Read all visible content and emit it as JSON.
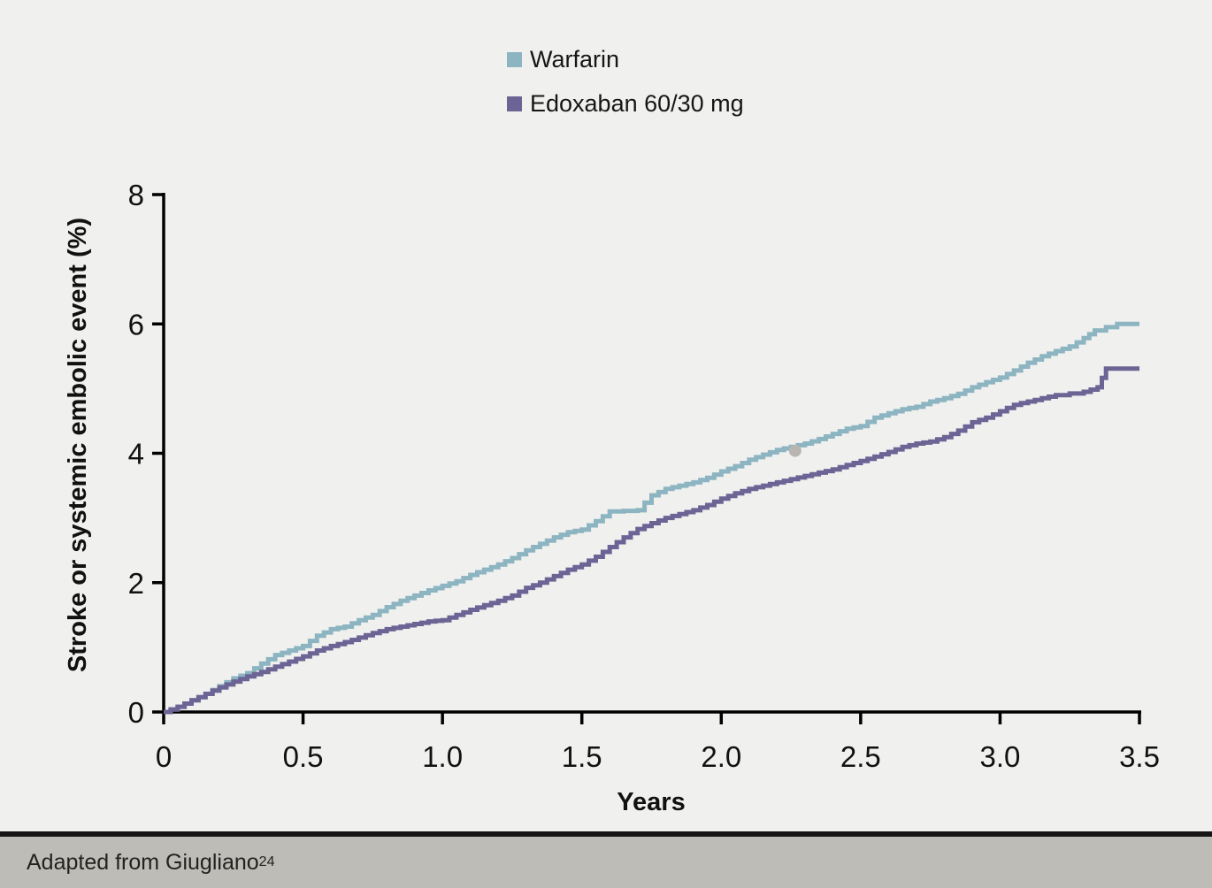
{
  "page": {
    "background_color": "#f0f0ee"
  },
  "legend": {
    "items": [
      {
        "label": "Warfarin",
        "color": "#8cb4c1"
      },
      {
        "label": "Edoxaban 60/30 mg",
        "color": "#6b6494"
      }
    ]
  },
  "footer": {
    "text": "Adapted from Giugliano",
    "citation_superscript": "24",
    "background_color": "#bebcb6",
    "border_color": "#161616"
  },
  "chart_data": {
    "type": "line",
    "line_style": "step",
    "title": "",
    "xlabel": "Years",
    "ylabel": "Stroke or systemic embolic event (%)",
    "xlim": [
      0,
      3.5
    ],
    "ylim": [
      0,
      8
    ],
    "x_ticks": [
      "0",
      "0.5",
      "1.0",
      "1.5",
      "2.0",
      "2.5",
      "3.0",
      "3.5"
    ],
    "x_tick_values": [
      0,
      0.5,
      1,
      1.5,
      2,
      2.5,
      3,
      3.5
    ],
    "y_ticks": [
      "0",
      "2",
      "4",
      "6",
      "8"
    ],
    "y_tick_values": [
      0,
      2,
      4,
      6,
      8
    ],
    "grid": false,
    "legend_position": "top-center",
    "axis_color": "#000000",
    "series": [
      {
        "name": "Warfarin",
        "color": "#8cb4c1",
        "points": [
          [
            0,
            0
          ],
          [
            0.05,
            0.08
          ],
          [
            0.1,
            0.18
          ],
          [
            0.15,
            0.28
          ],
          [
            0.2,
            0.4
          ],
          [
            0.25,
            0.52
          ],
          [
            0.3,
            0.6
          ],
          [
            0.35,
            0.75
          ],
          [
            0.4,
            0.88
          ],
          [
            0.45,
            0.95
          ],
          [
            0.5,
            1.02
          ],
          [
            0.55,
            1.18
          ],
          [
            0.6,
            1.28
          ],
          [
            0.65,
            1.32
          ],
          [
            0.7,
            1.42
          ],
          [
            0.75,
            1.5
          ],
          [
            0.8,
            1.62
          ],
          [
            0.85,
            1.72
          ],
          [
            0.9,
            1.8
          ],
          [
            0.95,
            1.88
          ],
          [
            1,
            1.95
          ],
          [
            1.05,
            2.02
          ],
          [
            1.1,
            2.12
          ],
          [
            1.15,
            2.2
          ],
          [
            1.2,
            2.28
          ],
          [
            1.25,
            2.38
          ],
          [
            1.3,
            2.5
          ],
          [
            1.35,
            2.6
          ],
          [
            1.4,
            2.7
          ],
          [
            1.45,
            2.78
          ],
          [
            1.5,
            2.82
          ],
          [
            1.55,
            2.95
          ],
          [
            1.6,
            3.1
          ],
          [
            1.7,
            3.12
          ],
          [
            1.75,
            3.35
          ],
          [
            1.8,
            3.45
          ],
          [
            1.85,
            3.5
          ],
          [
            1.9,
            3.55
          ],
          [
            1.95,
            3.62
          ],
          [
            2,
            3.72
          ],
          [
            2.05,
            3.8
          ],
          [
            2.1,
            3.9
          ],
          [
            2.15,
            3.98
          ],
          [
            2.2,
            4.05
          ],
          [
            2.25,
            4.1
          ],
          [
            2.3,
            4.15
          ],
          [
            2.35,
            4.22
          ],
          [
            2.4,
            4.3
          ],
          [
            2.45,
            4.38
          ],
          [
            2.5,
            4.42
          ],
          [
            2.55,
            4.55
          ],
          [
            2.6,
            4.62
          ],
          [
            2.65,
            4.68
          ],
          [
            2.7,
            4.72
          ],
          [
            2.75,
            4.8
          ],
          [
            2.8,
            4.85
          ],
          [
            2.85,
            4.92
          ],
          [
            2.9,
            5.02
          ],
          [
            2.95,
            5.1
          ],
          [
            3,
            5.17
          ],
          [
            3.05,
            5.28
          ],
          [
            3.1,
            5.4
          ],
          [
            3.15,
            5.5
          ],
          [
            3.2,
            5.58
          ],
          [
            3.25,
            5.65
          ],
          [
            3.3,
            5.78
          ],
          [
            3.34,
            5.9
          ],
          [
            3.42,
            6
          ],
          [
            3.5,
            6
          ]
        ]
      },
      {
        "name": "Edoxaban 60/30 mg",
        "color": "#6b6494",
        "points": [
          [
            0,
            0
          ],
          [
            0.05,
            0.08
          ],
          [
            0.1,
            0.18
          ],
          [
            0.15,
            0.28
          ],
          [
            0.2,
            0.38
          ],
          [
            0.25,
            0.47
          ],
          [
            0.3,
            0.55
          ],
          [
            0.35,
            0.62
          ],
          [
            0.4,
            0.7
          ],
          [
            0.45,
            0.78
          ],
          [
            0.5,
            0.86
          ],
          [
            0.55,
            0.95
          ],
          [
            0.6,
            1.02
          ],
          [
            0.65,
            1.08
          ],
          [
            0.7,
            1.15
          ],
          [
            0.75,
            1.22
          ],
          [
            0.8,
            1.28
          ],
          [
            0.85,
            1.32
          ],
          [
            0.9,
            1.36
          ],
          [
            0.95,
            1.4
          ],
          [
            1,
            1.42
          ],
          [
            1.05,
            1.5
          ],
          [
            1.1,
            1.58
          ],
          [
            1.15,
            1.65
          ],
          [
            1.2,
            1.72
          ],
          [
            1.25,
            1.8
          ],
          [
            1.3,
            1.92
          ],
          [
            1.35,
            2
          ],
          [
            1.4,
            2.1
          ],
          [
            1.45,
            2.2
          ],
          [
            1.5,
            2.28
          ],
          [
            1.55,
            2.4
          ],
          [
            1.6,
            2.55
          ],
          [
            1.65,
            2.7
          ],
          [
            1.7,
            2.83
          ],
          [
            1.75,
            2.92
          ],
          [
            1.8,
            3
          ],
          [
            1.85,
            3.06
          ],
          [
            1.9,
            3.12
          ],
          [
            1.95,
            3.2
          ],
          [
            2,
            3.3
          ],
          [
            2.05,
            3.38
          ],
          [
            2.1,
            3.45
          ],
          [
            2.15,
            3.5
          ],
          [
            2.2,
            3.55
          ],
          [
            2.25,
            3.6
          ],
          [
            2.3,
            3.65
          ],
          [
            2.35,
            3.7
          ],
          [
            2.4,
            3.75
          ],
          [
            2.45,
            3.82
          ],
          [
            2.5,
            3.88
          ],
          [
            2.55,
            3.95
          ],
          [
            2.6,
            4.02
          ],
          [
            2.65,
            4.1
          ],
          [
            2.7,
            4.15
          ],
          [
            2.75,
            4.18
          ],
          [
            2.8,
            4.25
          ],
          [
            2.85,
            4.35
          ],
          [
            2.9,
            4.48
          ],
          [
            2.95,
            4.55
          ],
          [
            3,
            4.65
          ],
          [
            3.05,
            4.75
          ],
          [
            3.1,
            4.8
          ],
          [
            3.15,
            4.85
          ],
          [
            3.2,
            4.9
          ],
          [
            3.3,
            4.95
          ],
          [
            3.35,
            5.02
          ],
          [
            3.38,
            5.31
          ],
          [
            3.5,
            5.31
          ]
        ]
      }
    ],
    "annotation_dot": {
      "x": 2.265,
      "y": 4.04,
      "color": "#b8b6b1",
      "radius": 7
    }
  }
}
